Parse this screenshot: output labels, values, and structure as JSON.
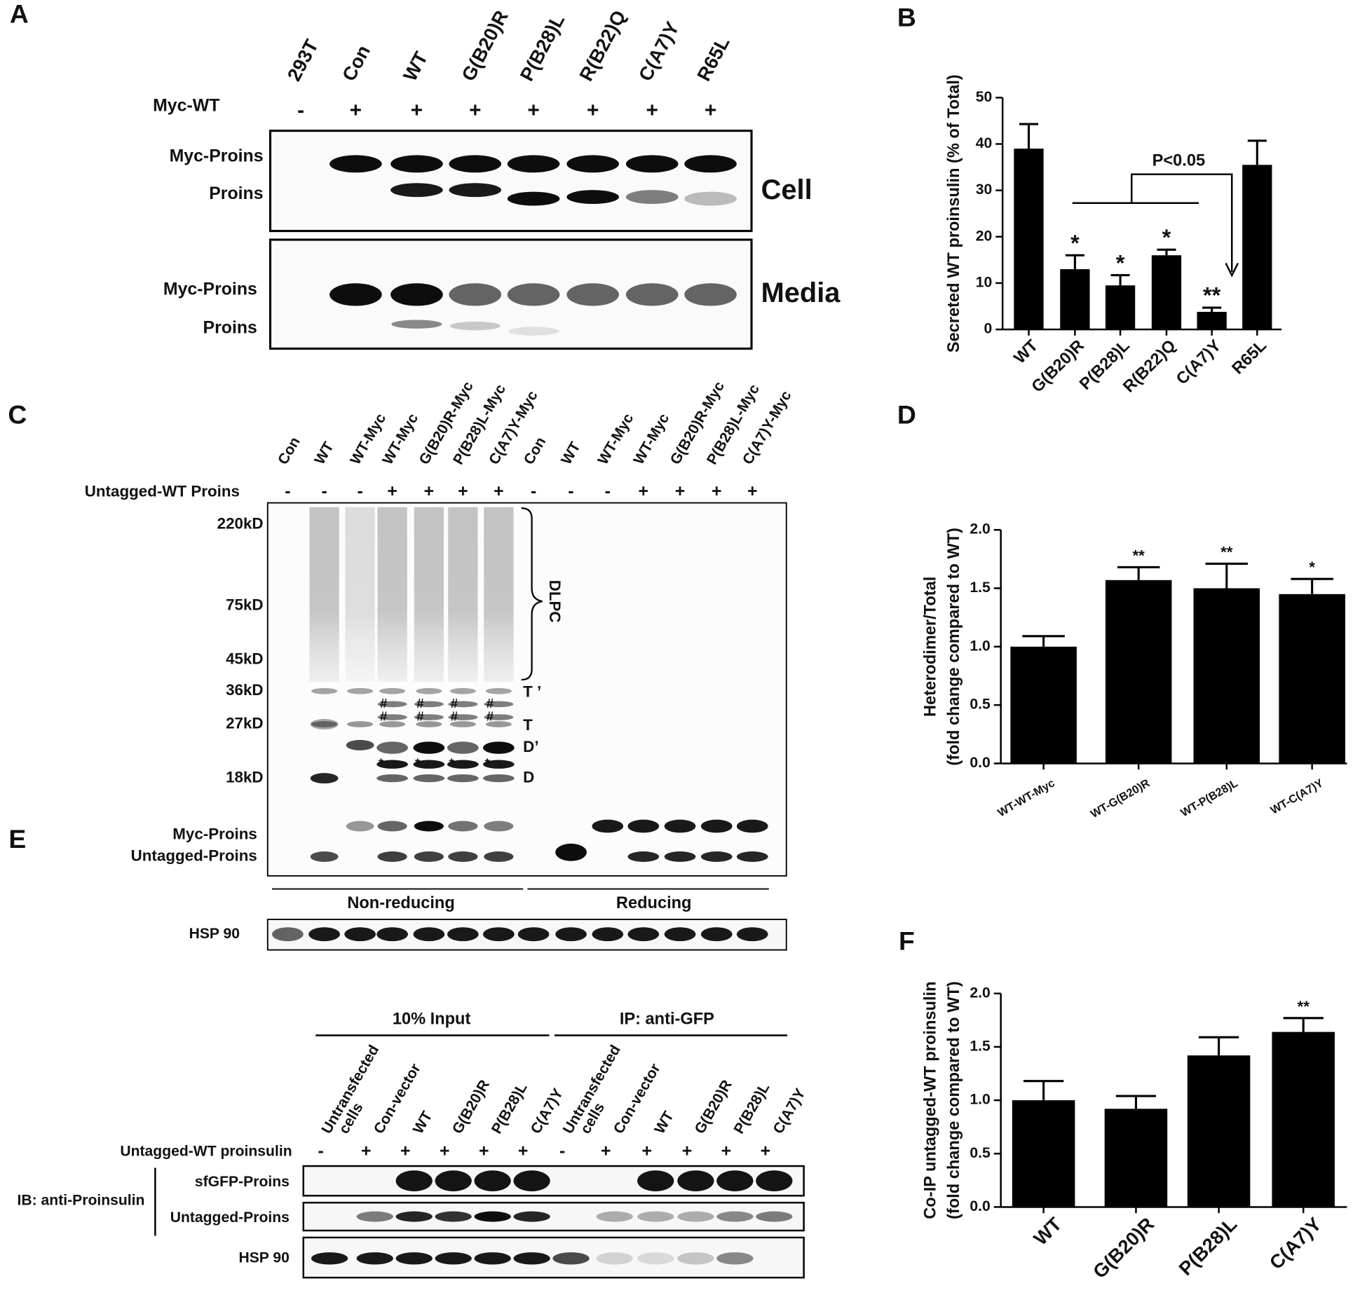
{
  "panel_labels": [
    "A",
    "B",
    "C",
    "D",
    "E",
    "F"
  ],
  "blot_a": {
    "lanes": [
      "293T",
      "Con",
      "WT",
      "G(B20)R",
      "P(B28)L",
      "R(B22)Q",
      "C(A7)Y",
      "R65L"
    ],
    "row_label": "Myc-WT",
    "signs": [
      "-",
      "+",
      "+",
      "+",
      "+",
      "+",
      "+",
      "+"
    ],
    "cell": {
      "label": "Cell",
      "bands": [
        "Myc-Proins",
        "Proins"
      ]
    },
    "media": {
      "label": "Media",
      "bands": [
        "Myc-Proins",
        "Proins"
      ]
    }
  },
  "blot_c": {
    "lanes": [
      "Con",
      "WT",
      "WT-Myc",
      "WT-Myc",
      "G(B20)R-Myc",
      "P(B28)L-Myc",
      "C(A7)Y-Myc",
      "Con",
      "WT",
      "WT-Myc",
      "WT-Myc",
      "G(B20)R-Myc",
      "P(B28)L-Myc",
      "C(A7)Y-Myc"
    ],
    "row_label": "Untagged-WT Proins",
    "signs": [
      "-",
      "-",
      "-",
      "+",
      "+",
      "+",
      "+",
      "-",
      "-",
      "-",
      "+",
      "+",
      "+",
      "+"
    ],
    "markers": [
      "220kD",
      "75kD",
      "45kD",
      "36kD",
      "27kD",
      "18kD"
    ],
    "bands": [
      "Myc-Proins",
      "Untagged-Proins"
    ],
    "species": [
      "DLPC",
      "T ’",
      "T",
      "D’",
      "D"
    ],
    "red_marks": [
      "#",
      "*"
    ],
    "conditions": [
      "Non-reducing",
      "Reducing"
    ],
    "loading": "HSP 90"
  },
  "blot_e": {
    "groups": [
      "10% Input",
      "IP: anti-GFP"
    ],
    "lanes": [
      [
        "Untransfected",
        "cells"
      ],
      "Con-vector",
      "WT",
      "G(B20)R",
      "P(B28)L",
      "C(A7)Y",
      [
        "Untransfected",
        "cells"
      ],
      "Con-vector",
      "WT",
      "G(B20)R",
      "P(B28)L",
      "C(A7)Y"
    ],
    "row_label": "Untagged-WT proinsulin",
    "signs": [
      "-",
      "+",
      "+",
      "+",
      "+",
      "+",
      "-",
      "+",
      "+",
      "+",
      "+",
      "+"
    ],
    "ib_label": "IB: anti-Proinsulin",
    "rows": [
      "sfGFP-Proins",
      "Untagged-Proins",
      "HSP 90"
    ]
  },
  "chart_data": [
    {
      "type": "bar",
      "ylabel": [
        "Secreted WT proinsulin (% of Total)"
      ],
      "categories": [
        "WT",
        "G(B20)R",
        "P(B28)L",
        "R(B22)Q",
        "C(A7)Y",
        "R65L"
      ],
      "values": [
        39,
        13,
        9.5,
        16,
        3.8,
        35.5
      ],
      "errors": [
        5.3,
        3,
        2.2,
        1.2,
        0.9,
        5.2
      ],
      "significance": [
        null,
        "*",
        "*",
        "*",
        "**",
        null
      ],
      "annotation": "P<0.05",
      "color": "#000000",
      "ylim": [
        0,
        50
      ],
      "yticks": [
        0,
        10,
        20,
        30,
        40,
        50
      ]
    },
    {
      "type": "bar",
      "ylabel": [
        "Heterodimer/Total",
        "(fold change compared to WT)"
      ],
      "categories": [
        "WT-WT-Myc",
        "WT-G(B20)R",
        "WT-P(B28)L",
        "WT-C(A7)Y"
      ],
      "values": [
        1.0,
        1.57,
        1.5,
        1.45
      ],
      "errors": [
        0.09,
        0.11,
        0.21,
        0.13
      ],
      "significance": [
        null,
        "**",
        "**",
        "*"
      ],
      "color": "#000000",
      "ylim": [
        0,
        2.0
      ],
      "yticks": [
        {
          "value": 0,
          "label": "0.0"
        },
        {
          "value": 0.5,
          "label": "0.5"
        },
        {
          "value": 1,
          "label": "1.0"
        },
        {
          "value": 1.5,
          "label": "1.5"
        },
        {
          "value": 2,
          "label": "2.0"
        }
      ]
    },
    {
      "type": "bar",
      "ylabel": [
        "Co-IP untagged-WT proinsulin",
        "(fold change compared to WT)"
      ],
      "categories": [
        "WT",
        "G(B20)R",
        "P(B28)L",
        "C(A7)Y"
      ],
      "values": [
        1.0,
        0.92,
        1.42,
        1.64
      ],
      "errors": [
        0.18,
        0.12,
        0.17,
        0.13
      ],
      "significance": [
        null,
        null,
        null,
        "**"
      ],
      "color": "#000000",
      "ylim": [
        0,
        2.0
      ],
      "yticks": [
        {
          "value": 0,
          "label": "0.0"
        },
        {
          "value": 0.5,
          "label": "0.5"
        },
        {
          "value": 1,
          "label": "1.0"
        },
        {
          "value": 1.5,
          "label": "1.5"
        },
        {
          "value": 2,
          "label": "2.0"
        }
      ]
    }
  ]
}
